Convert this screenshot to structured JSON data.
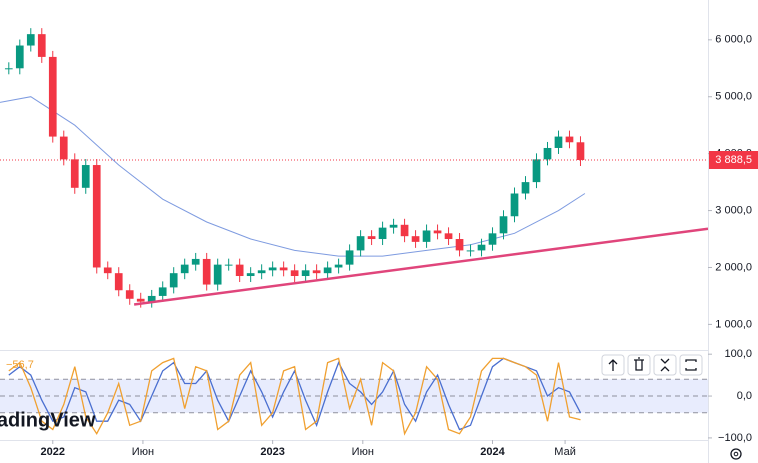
{
  "chart_data": [
    {
      "type": "candlestick",
      "x": [
        2021.8,
        2021.85,
        2021.9,
        2021.95,
        2022.0,
        2022.05,
        2022.1,
        2022.15,
        2022.2,
        2022.25,
        2022.3,
        2022.35,
        2022.4,
        2022.45,
        2022.5,
        2022.55,
        2022.6,
        2022.65,
        2022.7,
        2022.75,
        2022.8,
        2022.85,
        2022.9,
        2022.95,
        2023.0,
        2023.05,
        2023.1,
        2023.15,
        2023.2,
        2023.25,
        2023.3,
        2023.35,
        2023.4,
        2023.45,
        2023.5,
        2023.55,
        2023.6,
        2023.65,
        2023.7,
        2023.75,
        2023.8,
        2023.85,
        2023.9,
        2023.95,
        2024.0,
        2024.05,
        2024.1,
        2024.15,
        2024.2,
        2024.25,
        2024.3,
        2024.35,
        2024.4
      ],
      "values": [
        5500,
        5900,
        6100,
        5700,
        4300,
        3900,
        3400,
        3800,
        2000,
        1900,
        1600,
        1450,
        1400,
        1500,
        1650,
        1900,
        2050,
        2150,
        1700,
        2050,
        2050,
        1850,
        1900,
        1950,
        2000,
        1950,
        1850,
        1950,
        1900,
        2000,
        2050,
        2300,
        2550,
        2500,
        2700,
        2750,
        2550,
        2450,
        2650,
        2600,
        2500,
        2300,
        2300,
        2400,
        2600,
        2900,
        3300,
        3500,
        3900,
        4100,
        4300,
        4200,
        3888.5
      ],
      "colors": {
        "up": "#089981",
        "down": "#f23645"
      },
      "moving_average": {
        "x": [
          2021.76,
          2021.9,
          2022.1,
          2022.3,
          2022.5,
          2022.7,
          2022.9,
          2023.1,
          2023.3,
          2023.5,
          2023.7,
          2023.9,
          2024.1,
          2024.3,
          2024.42
        ],
        "values": [
          4900,
          5000,
          4500,
          3800,
          3200,
          2800,
          2500,
          2300,
          2200,
          2200,
          2300,
          2400,
          2600,
          3000,
          3300
        ],
        "color": "#7e9be0"
      },
      "trendline": {
        "x": [
          2022.37,
          2024.98
        ],
        "values": [
          1350,
          2680
        ],
        "color": "#e0457b"
      },
      "last_price": {
        "value": 3888.5,
        "label": "3 888,5",
        "color": "#f23645"
      },
      "xlim": [
        2021.76,
        2024.98
      ],
      "xticks": [
        2022,
        {
          "value": 2022.41,
          "label": "Июн"
        },
        2023,
        {
          "value": 2023.41,
          "label": "Июн"
        },
        2024,
        {
          "value": 2024.33,
          "label": "Май"
        }
      ],
      "ylim": [
        550,
        6700
      ],
      "yticks": [
        {
          "value": 1000,
          "label": "1 000,0"
        },
        {
          "value": 2000,
          "label": "2 000,0"
        },
        {
          "value": 3000,
          "label": "3 000,0"
        },
        {
          "value": 4000,
          "label": "4 000,0"
        },
        {
          "value": 5000,
          "label": "5 000,0"
        },
        {
          "value": 6000,
          "label": "6 000,0"
        }
      ]
    },
    {
      "type": "oscillator",
      "x": [
        2021.8,
        2021.85,
        2021.9,
        2021.95,
        2022.0,
        2022.05,
        2022.1,
        2022.15,
        2022.2,
        2022.25,
        2022.3,
        2022.35,
        2022.4,
        2022.45,
        2022.5,
        2022.55,
        2022.6,
        2022.65,
        2022.7,
        2022.75,
        2022.8,
        2022.85,
        2022.9,
        2022.95,
        2023.0,
        2023.05,
        2023.1,
        2023.15,
        2023.2,
        2023.25,
        2023.3,
        2023.35,
        2023.4,
        2023.45,
        2023.5,
        2023.55,
        2023.6,
        2023.65,
        2023.7,
        2023.75,
        2023.8,
        2023.85,
        2023.9,
        2023.95,
        2024.0,
        2024.05,
        2024.1,
        2024.15,
        2024.2,
        2024.25,
        2024.3,
        2024.35,
        2024.4
      ],
      "series": [
        {
          "color": "#f0a030",
          "values": [
            60,
            80,
            20,
            -60,
            -80,
            -20,
            70,
            -50,
            -90,
            -40,
            30,
            -70,
            -60,
            60,
            80,
            90,
            -30,
            70,
            60,
            -80,
            -60,
            50,
            80,
            -70,
            -40,
            60,
            70,
            -80,
            -60,
            80,
            90,
            -30,
            40,
            -70,
            80,
            60,
            -90,
            -40,
            70,
            40,
            -80,
            -90,
            -50,
            60,
            90,
            90,
            80,
            70,
            50,
            -60,
            80,
            -50,
            -56.7
          ],
          "last_label": "−56,7"
        },
        {
          "color": "#4a6fd0",
          "values": [
            50,
            70,
            50,
            -10,
            -60,
            -50,
            20,
            10,
            -60,
            -60,
            -10,
            -20,
            -60,
            0,
            60,
            80,
            30,
            30,
            60,
            -10,
            -60,
            0,
            60,
            10,
            -50,
            10,
            60,
            -10,
            -70,
            10,
            80,
            30,
            10,
            -20,
            10,
            60,
            -20,
            -60,
            10,
            50,
            -20,
            -80,
            -70,
            0,
            70,
            90,
            80,
            70,
            60,
            0,
            20,
            10,
            -40
          ]
        }
      ],
      "levels": [
        40,
        0,
        -40
      ],
      "band_color": "#d8e0fb",
      "ylim": [
        -105,
        110
      ],
      "yticks": [
        {
          "value": -100,
          "label": "−100,0"
        },
        {
          "value": 0,
          "label": "0,0"
        },
        {
          "value": 100,
          "label": "100,0"
        }
      ]
    }
  ],
  "logo": "TradingView"
}
